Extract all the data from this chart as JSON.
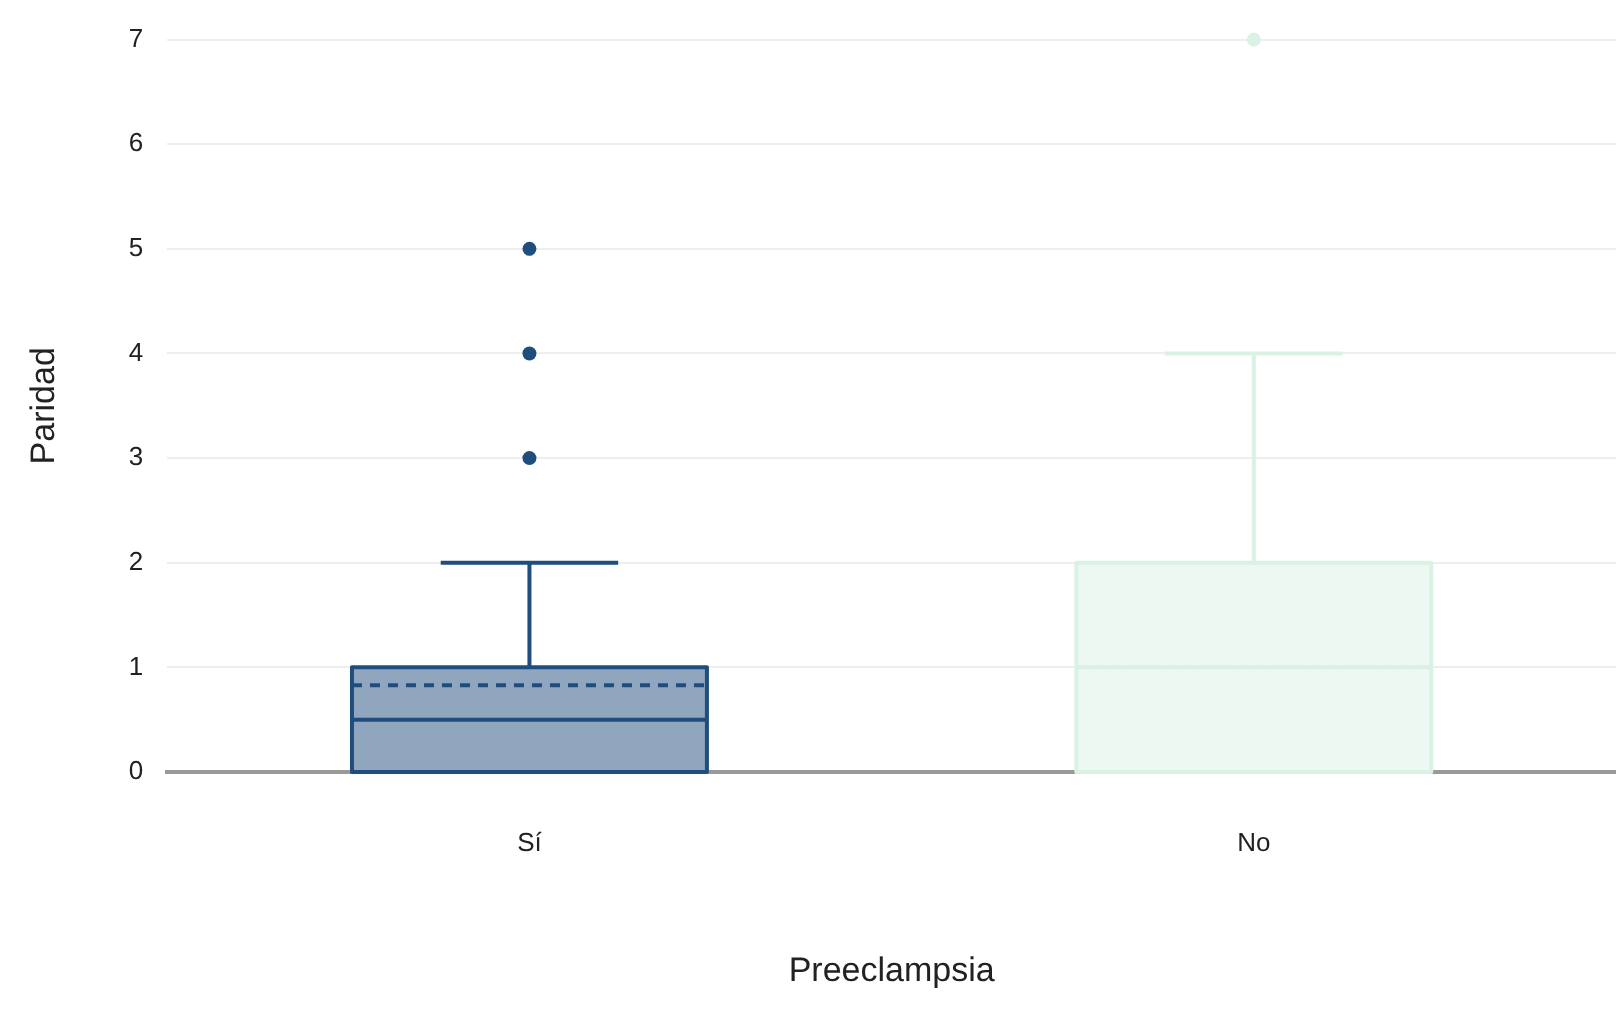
{
  "chart_data": {
    "type": "box",
    "xlabel": "Preeclampsia",
    "ylabel": "Paridad",
    "categories": [
      "Sí",
      "No"
    ],
    "boxes": [
      {
        "low": 0,
        "q1": 0,
        "median": 0.5,
        "q3": 1,
        "high": 2,
        "mean": 0.83,
        "outliers": [
          3,
          4,
          5
        ]
      },
      {
        "low": 0,
        "q1": 0,
        "median": 1,
        "q3": 2,
        "high": 4,
        "mean": 1,
        "outliers": [
          7
        ]
      }
    ],
    "colors": [
      "#1f4e7e",
      "#d9f2e4"
    ],
    "ylim": [
      0,
      7
    ],
    "yticks": [
      0,
      1,
      2,
      3,
      4,
      5,
      6,
      7
    ],
    "grid": "y",
    "legend": false
  }
}
